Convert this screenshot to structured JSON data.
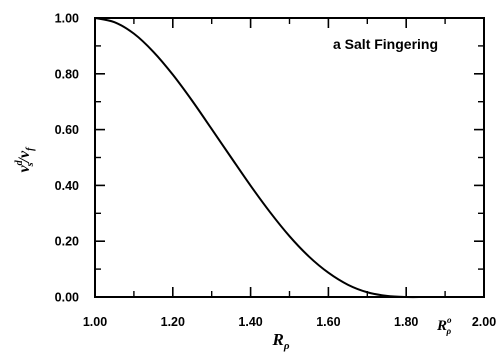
{
  "chart_data": {
    "type": "line",
    "title": "",
    "annotation": "a Salt Fingering",
    "xlabel": {
      "main": "R",
      "sub": "ρ"
    },
    "ylabel": {
      "nu1": "ν",
      "sup": "d",
      "sub1": "s",
      "slash": "/",
      "nu2": "ν",
      "sub2": "f"
    },
    "xlim": [
      1.0,
      2.0
    ],
    "ylim": [
      0.0,
      1.0
    ],
    "x_ticks": [
      {
        "value": 1.0,
        "label": "1.00"
      },
      {
        "value": 1.2,
        "label": "1.20"
      },
      {
        "value": 1.4,
        "label": "1.40"
      },
      {
        "value": 1.6,
        "label": "1.60"
      },
      {
        "value": 1.8,
        "label": "1.80"
      },
      {
        "value": 2.0,
        "label": "2.00"
      }
    ],
    "x_marker": {
      "value": 1.9,
      "main": "R",
      "sup": "o",
      "sub": "ρ"
    },
    "y_ticks": [
      {
        "value": 0.0,
        "label": "0.00"
      },
      {
        "value": 0.2,
        "label": "0.20"
      },
      {
        "value": 0.4,
        "label": "0.40"
      },
      {
        "value": 0.6,
        "label": "0.60"
      },
      {
        "value": 0.8,
        "label": "0.80"
      },
      {
        "value": 1.0,
        "label": "1.00"
      }
    ],
    "grid": false,
    "series": [
      {
        "x": [
          1.0,
          1.05,
          1.1,
          1.15,
          1.2,
          1.25,
          1.3,
          1.35,
          1.4,
          1.45,
          1.5,
          1.55,
          1.6,
          1.65,
          1.7,
          1.75,
          1.8,
          1.85,
          1.9
        ],
        "y": [
          1.0,
          0.985,
          0.944,
          0.879,
          0.797,
          0.703,
          0.602,
          0.5,
          0.399,
          0.304,
          0.218,
          0.145,
          0.087,
          0.044,
          0.017,
          0.004,
          0.0,
          0.0,
          0.0
        ],
        "color": "#000000"
      }
    ]
  }
}
